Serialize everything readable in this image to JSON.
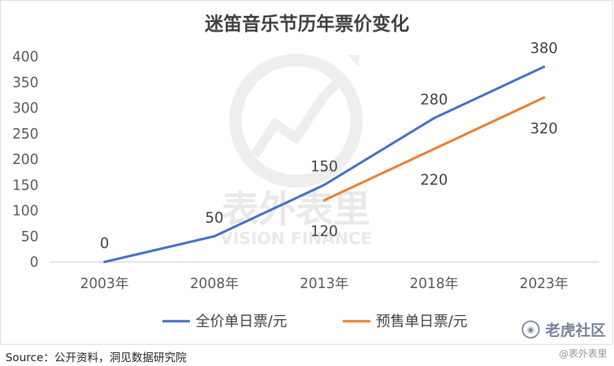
{
  "chart_data": {
    "type": "line",
    "title": "迷笛音乐节历年票价变化",
    "categories": [
      "2003年",
      "2008年",
      "2013年",
      "2018年",
      "2023年"
    ],
    "ylim": [
      0,
      400
    ],
    "yticks": [
      0,
      50,
      100,
      150,
      200,
      250,
      300,
      350,
      400
    ],
    "grid": false,
    "legend": "bottom",
    "series": [
      {
        "name": "全价单日票/元",
        "color": "#4472C4",
        "values": [
          0,
          50,
          150,
          280,
          380
        ],
        "labels": [
          "0",
          "50",
          "150",
          "280",
          "380"
        ]
      },
      {
        "name": "预售单日票/元",
        "color": "#ED7D31",
        "values": [
          null,
          null,
          120,
          220,
          320
        ],
        "labels": [
          "",
          "",
          "120",
          "220",
          "320"
        ]
      }
    ]
  },
  "watermark": {
    "chinese": "表外表里",
    "english": "VISION FINANCE"
  },
  "source": "Source：公开资料，洞见数据研究院",
  "community": {
    "label": "老虎社区",
    "icon": "tiger-icon"
  },
  "handle": "@表外表里"
}
